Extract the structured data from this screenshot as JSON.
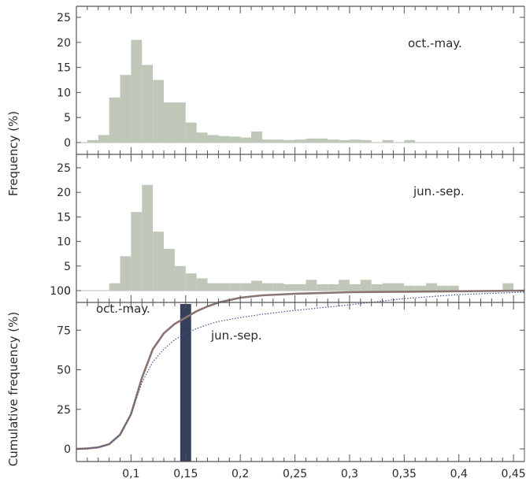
{
  "chart_data": [
    {
      "type": "bar",
      "panel": "top",
      "annotation": "oct.-may.",
      "ylabel": "Frequency (%)",
      "ylim": [
        0,
        25
      ],
      "yticks": [
        "0",
        "5",
        "10",
        "15",
        "20",
        "25"
      ],
      "bin_width": 0.01,
      "bin_start": 0.06,
      "values": [
        0.5,
        1.5,
        9,
        13.5,
        20.5,
        15.5,
        12.5,
        8,
        8,
        4,
        2,
        1.5,
        1.3,
        1.2,
        1,
        2.2,
        0.6,
        0.6,
        0.5,
        0.6,
        0.8,
        0.8,
        0.6,
        0.5,
        0.6,
        0.5,
        0,
        0.5,
        0,
        0.5,
        0,
        0,
        0,
        0,
        0,
        0,
        0,
        0,
        0,
        0
      ]
    },
    {
      "type": "bar",
      "panel": "middle",
      "annotation": "jun.-sep.",
      "ylim": [
        0,
        25
      ],
      "yticks": [
        "0",
        "5",
        "10",
        "15",
        "20",
        "25"
      ],
      "bin_width": 0.01,
      "bin_start": 0.06,
      "values": [
        0,
        0,
        1.5,
        7,
        16,
        21.5,
        12,
        8.5,
        5,
        3.5,
        2.5,
        1.5,
        1.5,
        1.5,
        1.5,
        2,
        1.5,
        1.5,
        1.3,
        1.3,
        2.2,
        1.3,
        1.3,
        2.2,
        1.3,
        2.2,
        1.3,
        1.5,
        1.5,
        1,
        1,
        1.5,
        1,
        1,
        0,
        0,
        0,
        0,
        1.5,
        0
      ]
    },
    {
      "type": "line",
      "panel": "bottom",
      "ylabel": "Cumulative frequency (%)",
      "xlabel": "",
      "xlim": [
        0.05,
        0.46
      ],
      "ylim": [
        0,
        100
      ],
      "yticks": [
        "0",
        "25",
        "50",
        "75",
        "100"
      ],
      "xticks": [
        "0,1",
        "0,15",
        "0,2",
        "0,25",
        "0,3",
        "0,35",
        "0,4",
        "0,45"
      ],
      "series": [
        {
          "name": "oct.-may.",
          "style": "solid",
          "x": [
            0.05,
            0.06,
            0.07,
            0.08,
            0.09,
            0.1,
            0.11,
            0.12,
            0.13,
            0.14,
            0.15,
            0.16,
            0.17,
            0.18,
            0.2,
            0.22,
            0.25,
            0.3,
            0.35,
            0.4,
            0.46
          ],
          "y": [
            0,
            0.3,
            1,
            3,
            9,
            22,
            45,
            63,
            73,
            79,
            83,
            87,
            90,
            92.5,
            95.5,
            97,
            98,
            99,
            99.3,
            99.6,
            100
          ]
        },
        {
          "name": "jun.-sep.",
          "style": "dotted",
          "x": [
            0.05,
            0.06,
            0.07,
            0.08,
            0.09,
            0.1,
            0.11,
            0.12,
            0.13,
            0.14,
            0.15,
            0.16,
            0.17,
            0.18,
            0.2,
            0.22,
            0.25,
            0.3,
            0.35,
            0.4,
            0.46
          ],
          "y": [
            0,
            0.3,
            1,
            3,
            9,
            22,
            42,
            55,
            63,
            69,
            73,
            76,
            78.5,
            80.5,
            83,
            85,
            87.5,
            91,
            95,
            97.5,
            99
          ]
        }
      ],
      "highlight_band": {
        "x_from": 0.145,
        "x_to": 0.155
      },
      "annotations": [
        "oct.-may.",
        "jun.-sep."
      ]
    }
  ],
  "colors": {
    "bars": "#bfc8b8",
    "line_oct_may": "#8a7472",
    "line_jun_sep": "#3d5394",
    "band": "#363f5c",
    "axis": "#555555"
  }
}
